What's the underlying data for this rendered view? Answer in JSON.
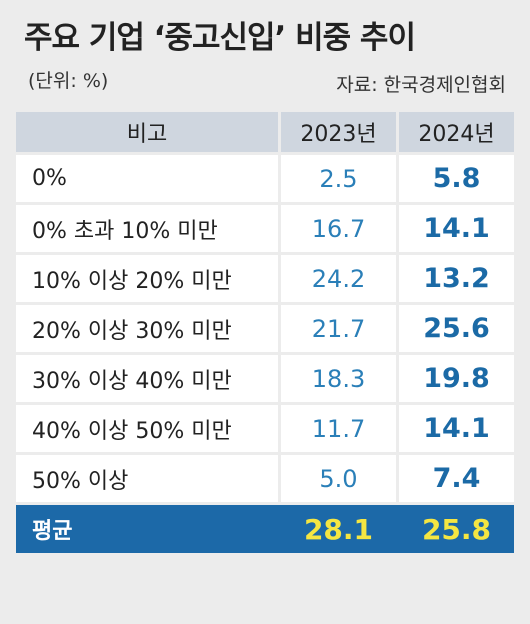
{
  "title": "주요 기업 ‘중고신입’ 비중 추이",
  "unit": "(단위: %)",
  "source": "자료: 한국경제인협회",
  "colors": {
    "header_bg": "#cfd6df",
    "value_blue": "#2a7fb8",
    "avg_bg": "#1c69a8",
    "avg_text": "#f5e642"
  },
  "chart_data": {
    "type": "table",
    "title": "주요 기업 ‘중고신입’ 비중 추이",
    "columns": [
      "비고",
      "2023년",
      "2024년"
    ],
    "rows": [
      {
        "label": "0%",
        "y2023": "2.5",
        "y2024": "5.8"
      },
      {
        "label": "0% 초과 10% 미만",
        "y2023": "16.7",
        "y2024": "14.1"
      },
      {
        "label": "10% 이상 20% 미만",
        "y2023": "24.2",
        "y2024": "13.2"
      },
      {
        "label": "20% 이상 30% 미만",
        "y2023": "21.7",
        "y2024": "25.6"
      },
      {
        "label": "30% 이상 40% 미만",
        "y2023": "18.3",
        "y2024": "19.8"
      },
      {
        "label": "40% 이상 50% 미만",
        "y2023": "11.7",
        "y2024": "14.1"
      },
      {
        "label": "50% 이상",
        "y2023": "5.0",
        "y2024": "7.4"
      }
    ],
    "average": {
      "label": "평균",
      "y2023": "28.1",
      "y2024": "25.8"
    }
  }
}
